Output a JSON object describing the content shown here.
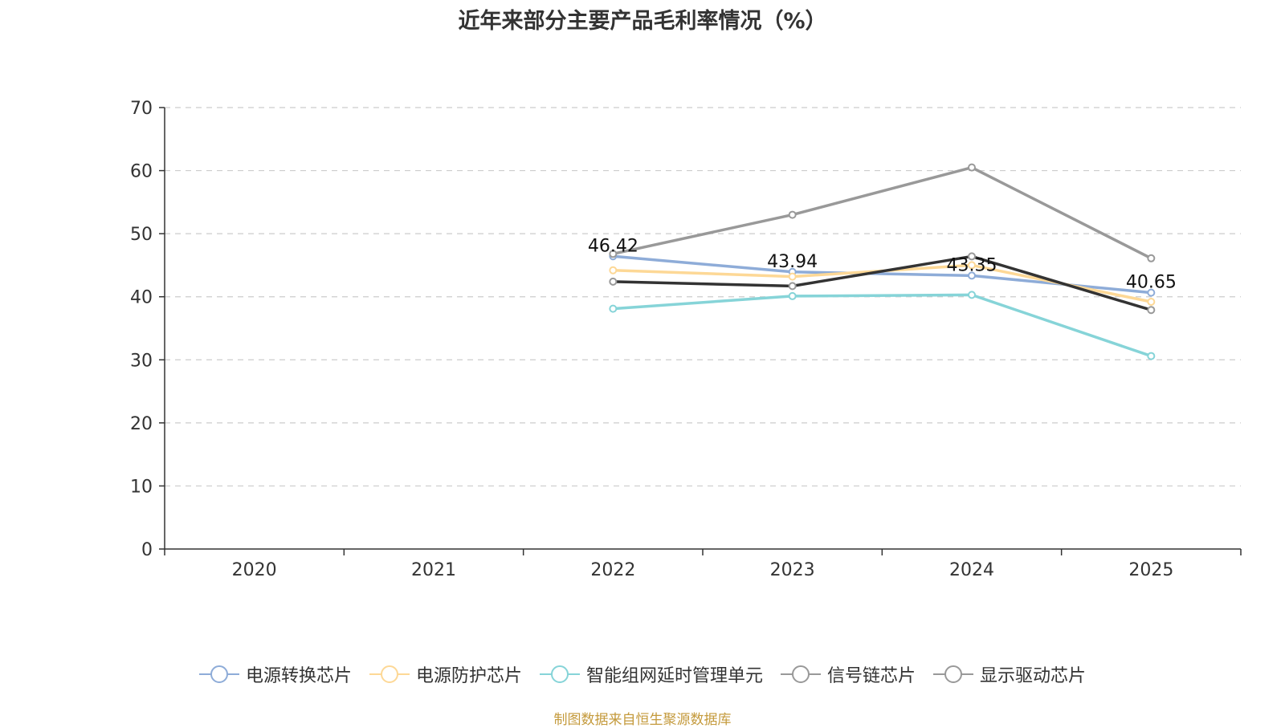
{
  "chart_data": {
    "type": "line",
    "title": "近年来部分主要产品毛利率情况（%）",
    "categories": [
      "2020",
      "2021",
      "2022",
      "2023",
      "2024",
      "2025"
    ],
    "ylim": [
      0,
      70
    ],
    "yticks": [
      "0",
      "10",
      "20",
      "30",
      "40",
      "50",
      "60",
      "70"
    ],
    "grid": "dashed-horizontal",
    "legend_position": "bottom",
    "series": [
      {
        "name": "电源转换芯片",
        "color": "#8eacd8",
        "values": [
          null,
          null,
          46.42,
          43.94,
          43.35,
          40.65
        ],
        "labels": [
          "",
          "",
          "46.42",
          "43.94",
          "43.35",
          "40.65"
        ]
      },
      {
        "name": "电源防护芯片",
        "color": "#fdd896",
        "values": [
          null,
          null,
          44.2,
          43.2,
          45.0,
          39.2
        ],
        "labels": [
          "",
          "",
          "",
          "",
          "",
          ""
        ]
      },
      {
        "name": "智能组网延时管理单元",
        "color": "#86d4d8",
        "values": [
          null,
          null,
          38.1,
          40.1,
          40.3,
          30.6
        ],
        "labels": [
          "",
          "",
          "",
          "",
          "",
          ""
        ]
      },
      {
        "name": "信号链芯片",
        "color": "#999999",
        "values": [
          null,
          null,
          46.8,
          53.0,
          60.5,
          46.1
        ],
        "labels": [
          "",
          "",
          "",
          "",
          "",
          ""
        ]
      },
      {
        "name": "显示驱动芯片",
        "color": "#333333",
        "values": [
          null,
          null,
          42.4,
          41.7,
          46.4,
          37.9
        ],
        "labels": [
          "",
          "",
          "",
          "",
          "",
          ""
        ]
      }
    ]
  },
  "legend": {
    "items": [
      {
        "label": "电源转换芯片",
        "color": "#8eacd8"
      },
      {
        "label": "电源防护芯片",
        "color": "#fdd896"
      },
      {
        "label": "智能组网延时管理单元",
        "color": "#86d4d8"
      },
      {
        "label": "信号链芯片",
        "color": "#999999"
      },
      {
        "label": "显示驱动芯片",
        "color": "#999999"
      }
    ]
  },
  "footer": {
    "source": "制图数据来自恒生聚源数据库"
  }
}
